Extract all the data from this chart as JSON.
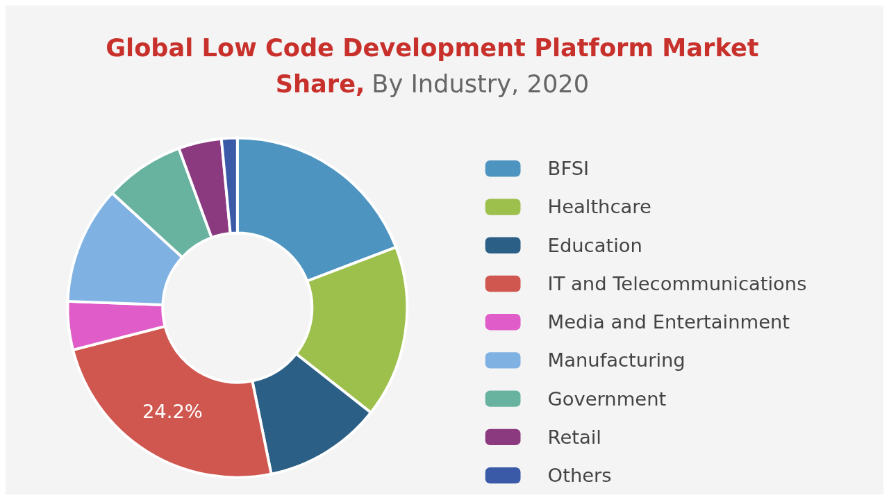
{
  "chart_data": {
    "type": "donut",
    "title": "Global Low Code Development Platform Market Share,",
    "subtitle": "By Industry, 2020",
    "categories": [
      "BFSI",
      "Healthcare",
      "Education",
      "IT and Telecommunications",
      "Media and Entertainment",
      "Manufacturing",
      "Government",
      "Retail",
      "Others"
    ],
    "values": [
      19.2,
      16.4,
      11.2,
      24.2,
      4.6,
      11.2,
      7.6,
      4.1,
      1.5
    ],
    "colors": [
      "#4e94c0",
      "#9dbf4c",
      "#2b5f85",
      "#d0574f",
      "#e05cc8",
      "#7fb1e3",
      "#68b2a0",
      "#8c3a80",
      "#3a5aa8"
    ],
    "value_labels": [
      null,
      null,
      null,
      "24.2%",
      null,
      null,
      null,
      null,
      null
    ],
    "legend": "right"
  }
}
